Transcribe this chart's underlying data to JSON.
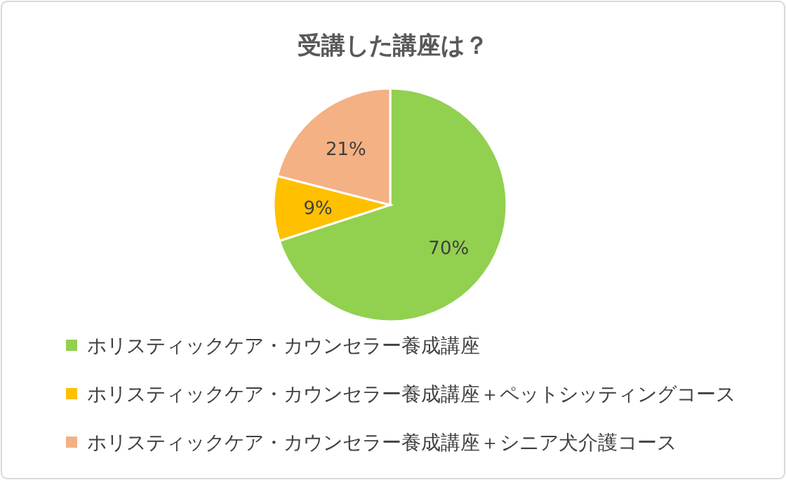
{
  "chart_data": {
    "type": "pie",
    "title": "受講した講座は？",
    "categories": [
      "ホリスティックケア・カウンセラー養成講座",
      "ホリスティックケア・カウンセラー養成講座＋ペットシッティングコース",
      "ホリスティックケア・カウンセラー養成講座＋シニア犬介護コース"
    ],
    "values": [
      70,
      9,
      21
    ],
    "value_labels": [
      "70%",
      "9%",
      "21%"
    ],
    "colors": [
      "#92d050",
      "#ffc000",
      "#f4b183"
    ],
    "legend": "bottom"
  }
}
